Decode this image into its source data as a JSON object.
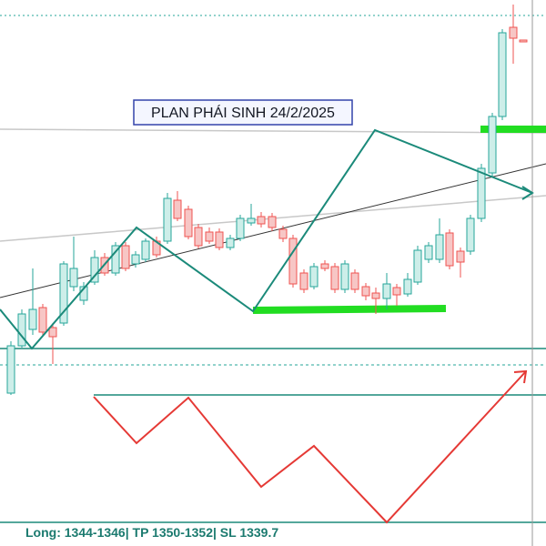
{
  "header": {
    "title": "PLAN PHÁI SINH 24/2/2025"
  },
  "footer": {
    "text": "Long: 1344-1346| TP 1350-1352| SL 1339.7"
  }
}
